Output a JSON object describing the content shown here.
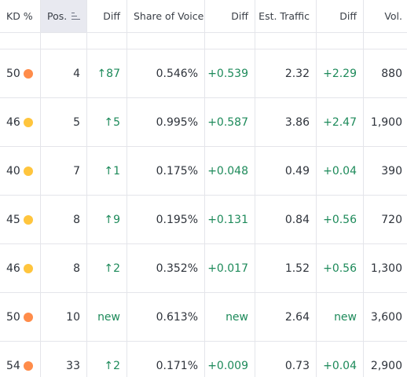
{
  "header": {
    "kd": "KD %",
    "pos": "Pos.",
    "pos_diff": "Diff",
    "sov": "Share of Voice",
    "sov_diff": "Diff",
    "traffic": "Est. Traffic",
    "traffic_diff": "Diff",
    "vol": "Vol."
  },
  "colors": {
    "kd_orange": "#ff8c4a",
    "kd_yellow": "#ffc53d",
    "diff_green": "#1d8a5a"
  },
  "rows": [
    {
      "kd": "50",
      "kd_level": "orange",
      "pos": "4",
      "pos_diff": "↑87",
      "sov": "0.546%",
      "sov_diff": "+0.539",
      "traffic": "2.32",
      "traffic_diff": "+2.29",
      "vol": "880"
    },
    {
      "kd": "46",
      "kd_level": "yellow",
      "pos": "5",
      "pos_diff": "↑5",
      "sov": "0.995%",
      "sov_diff": "+0.587",
      "traffic": "3.86",
      "traffic_diff": "+2.47",
      "vol": "1,900"
    },
    {
      "kd": "40",
      "kd_level": "yellow",
      "pos": "7",
      "pos_diff": "↑1",
      "sov": "0.175%",
      "sov_diff": "+0.048",
      "traffic": "0.49",
      "traffic_diff": "+0.04",
      "vol": "390"
    },
    {
      "kd": "45",
      "kd_level": "yellow",
      "pos": "8",
      "pos_diff": "↑9",
      "sov": "0.195%",
      "sov_diff": "+0.131",
      "traffic": "0.84",
      "traffic_diff": "+0.56",
      "vol": "720"
    },
    {
      "kd": "46",
      "kd_level": "yellow",
      "pos": "8",
      "pos_diff": "↑2",
      "sov": "0.352%",
      "sov_diff": "+0.017",
      "traffic": "1.52",
      "traffic_diff": "+0.56",
      "vol": "1,300"
    },
    {
      "kd": "50",
      "kd_level": "orange",
      "pos": "10",
      "pos_diff": "new",
      "sov": "0.613%",
      "sov_diff": "new",
      "traffic": "2.64",
      "traffic_diff": "new",
      "vol": "3,600"
    },
    {
      "kd": "54",
      "kd_level": "orange",
      "pos": "33",
      "pos_diff": "↑2",
      "sov": "0.171%",
      "sov_diff": "+0.009",
      "traffic": "0.73",
      "traffic_diff": "+0.04",
      "vol": "2,900"
    }
  ]
}
